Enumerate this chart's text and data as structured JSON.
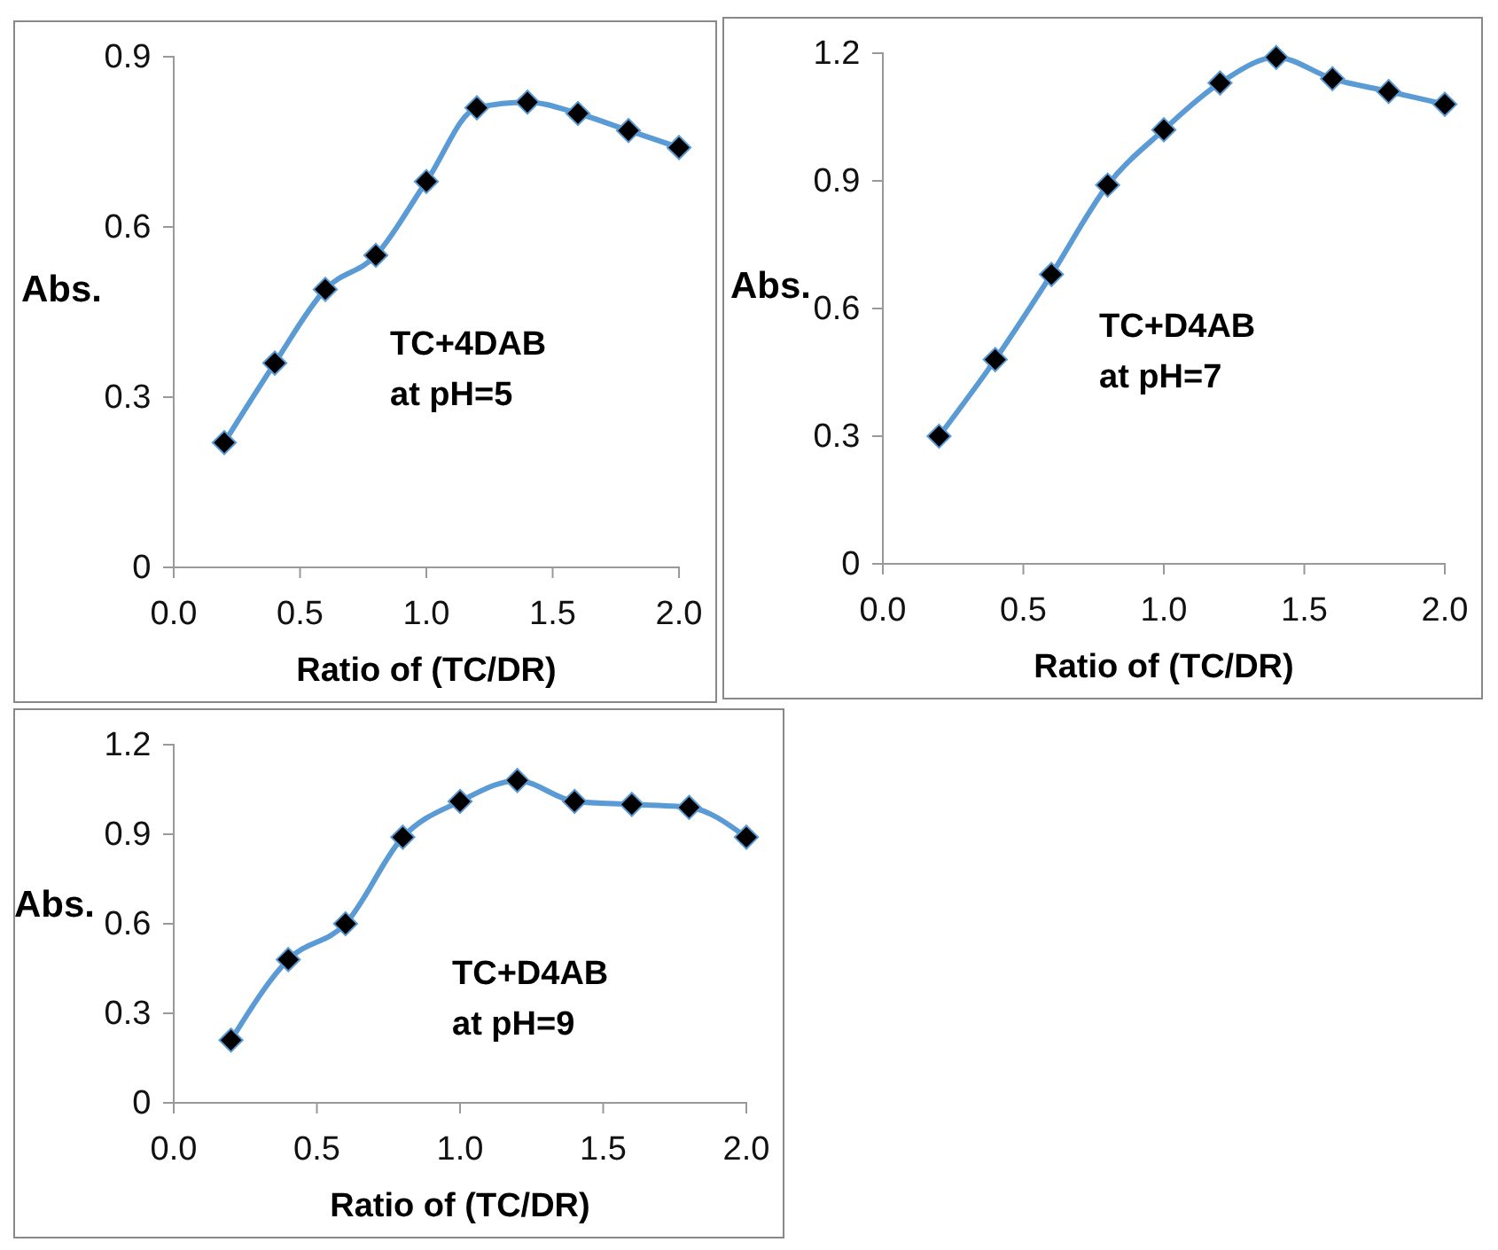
{
  "chart_data": [
    {
      "type": "line",
      "xlabel": "Ratio of (TC/DR)",
      "ylabel": "Abs.",
      "annotations": [
        "TC+4DAB\nat pH=5"
      ],
      "x": [
        0.2,
        0.4,
        0.6,
        0.8,
        1.0,
        1.2,
        1.4,
        1.6,
        1.8,
        2.0
      ],
      "series": [
        {
          "color": "#5b9bd5",
          "values": [
            0.22,
            0.36,
            0.49,
            0.55,
            0.68,
            0.81,
            0.82,
            0.8,
            0.77,
            0.74
          ]
        }
      ],
      "xlim": [
        0,
        2
      ],
      "xticks": [
        {
          "value": 0,
          "label": "0.0"
        },
        {
          "value": 0.5,
          "label": "0.5"
        },
        {
          "value": 1,
          "label": "1.0"
        },
        {
          "value": 1.5,
          "label": "1.5"
        },
        {
          "value": 2,
          "label": "2.0"
        }
      ],
      "ylim": [
        0,
        0.9
      ],
      "yticks": [
        0,
        0.3,
        0.6,
        0.9
      ],
      "grid": false,
      "marker": "diamond",
      "line_style": "solid"
    },
    {
      "type": "line",
      "xlabel": "Ratio of (TC/DR)",
      "ylabel": "Abs.",
      "annotations": [
        "TC+D4AB\nat pH=7"
      ],
      "x": [
        0.2,
        0.4,
        0.6,
        0.8,
        1.0,
        1.2,
        1.4,
        1.6,
        1.8,
        2.0
      ],
      "series": [
        {
          "color": "#5b9bd5",
          "values": [
            0.3,
            0.48,
            0.68,
            0.89,
            1.02,
            1.13,
            1.19,
            1.14,
            1.11,
            1.08
          ]
        }
      ],
      "xlim": [
        0,
        2
      ],
      "xticks": [
        {
          "value": 0,
          "label": "0.0"
        },
        {
          "value": 0.5,
          "label": "0.5"
        },
        {
          "value": 1,
          "label": "1.0"
        },
        {
          "value": 1.5,
          "label": "1.5"
        },
        {
          "value": 2,
          "label": "2.0"
        }
      ],
      "ylim": [
        0,
        1.2
      ],
      "yticks": [
        0,
        0.3,
        0.6,
        0.9,
        1.2
      ],
      "grid": false,
      "marker": "diamond",
      "line_style": "solid"
    },
    {
      "type": "line",
      "xlabel": "Ratio of (TC/DR)",
      "ylabel": "Abs.",
      "annotations": [
        "TC+D4AB\nat pH=9"
      ],
      "x": [
        0.2,
        0.4,
        0.6,
        0.8,
        1.0,
        1.2,
        1.4,
        1.6,
        1.8,
        2.0
      ],
      "series": [
        {
          "color": "#5b9bd5",
          "values": [
            0.21,
            0.48,
            0.6,
            0.89,
            1.01,
            1.08,
            1.01,
            1.0,
            0.99,
            0.89
          ]
        }
      ],
      "xlim": [
        0,
        2
      ],
      "xticks": [
        {
          "value": 0,
          "label": "0.0"
        },
        {
          "value": 0.5,
          "label": "0.5"
        },
        {
          "value": 1,
          "label": "1.0"
        },
        {
          "value": 1.5,
          "label": "1.5"
        },
        {
          "value": 2,
          "label": "2.0"
        }
      ],
      "ylim": [
        0,
        1.2
      ],
      "yticks": [
        0,
        0.3,
        0.6,
        0.9,
        1.2
      ],
      "grid": false,
      "marker": "diamond",
      "line_style": "solid"
    }
  ]
}
